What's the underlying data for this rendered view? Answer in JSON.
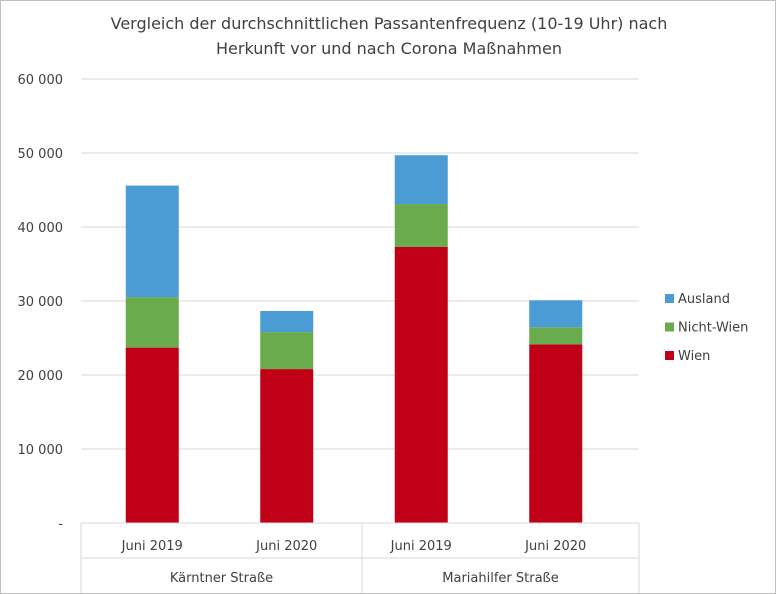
{
  "chart_data": {
    "type": "bar",
    "stacked": true,
    "title_lines": [
      "Vergleich der durchschnittlichen Passantenfrequenz (10-19 Uhr) nach",
      "Herkunft vor und nach Corona Maßnahmen"
    ],
    "categories": [
      "Juni 2019",
      "Juni 2020",
      "Juni 2019",
      "Juni 2020"
    ],
    "groups": [
      {
        "label": "Kärntner Straße",
        "span": 2
      },
      {
        "label": "Mariahilfer Straße",
        "span": 2
      }
    ],
    "series": [
      {
        "name": "Wien",
        "color": "#C00016",
        "values": [
          23700,
          20800,
          37300,
          24150
        ]
      },
      {
        "name": "Nicht-Wien",
        "color": "#6AAB4E",
        "values": [
          6800,
          5000,
          5800,
          2300
        ]
      },
      {
        "name": "Ausland",
        "color": "#4B9BD4",
        "values": [
          15100,
          2850,
          6600,
          3650
        ]
      }
    ],
    "ylim": [
      0,
      60000
    ],
    "yticks": [
      0,
      10000,
      20000,
      30000,
      40000,
      50000,
      60000
    ],
    "ytick_labels": [
      "-",
      "10 000",
      "20 000",
      "30 000",
      "40 000",
      "50 000",
      "60 000"
    ],
    "grid": true,
    "legend_position": "right",
    "legend_order": [
      "Ausland",
      "Nicht-Wien",
      "Wien"
    ]
  }
}
